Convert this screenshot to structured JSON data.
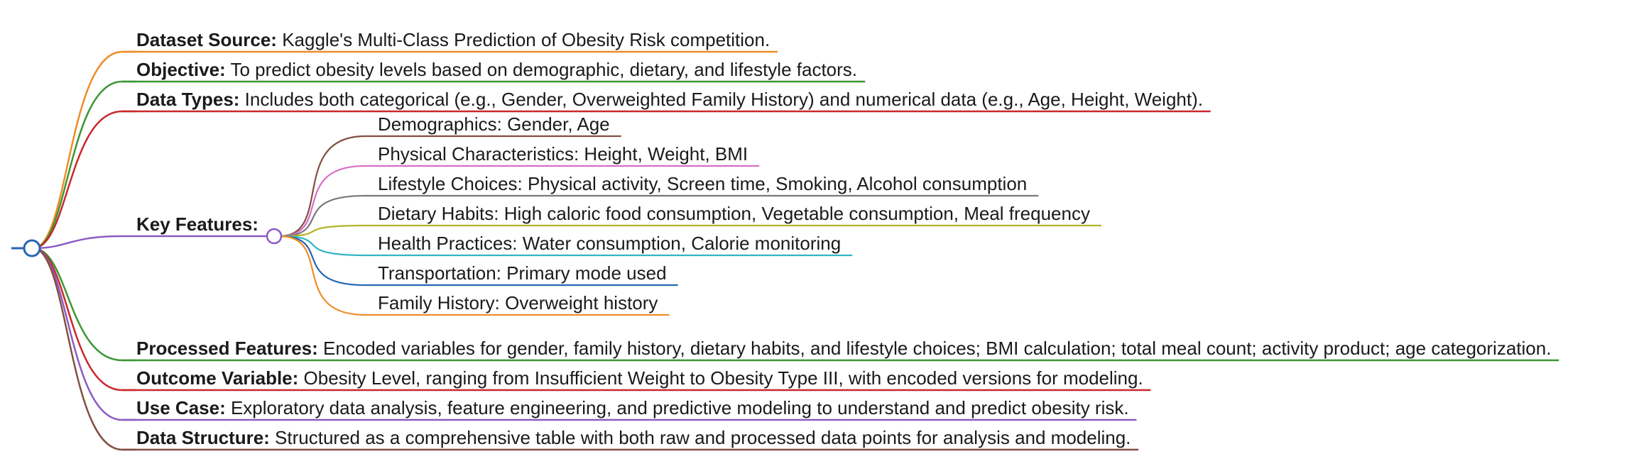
{
  "mindmap": {
    "branches": [
      {
        "label": "Dataset Source:",
        "text": "Kaggle's Multi-Class Prediction of Obesity Risk competition.",
        "color": "#f08c28"
      },
      {
        "label": "Objective:",
        "text": "To predict obesity levels based on demographic, dietary, and lifestyle factors.",
        "color": "#3c9632"
      },
      {
        "label": "Data Types:",
        "text": "Includes both categorical (e.g., Gender, Overweighted Family History) and numerical data (e.g., Age, Height, Weight).",
        "color": "#c8282d"
      },
      {
        "label": "Key Features:",
        "text": "",
        "color": "#8c5ac3",
        "children": [
          {
            "text": "Demographics: Gender, Age",
            "color": "#825041"
          },
          {
            "text": "Physical Characteristics: Height, Weight, BMI",
            "color": "#d76ec8"
          },
          {
            "text": "Lifestyle Choices: Physical activity, Screen time, Smoking, Alcohol consumption",
            "color": "#787878"
          },
          {
            "text": "Dietary Habits: High caloric food consumption, Vegetable consumption, Meal frequency",
            "color": "#b4b428"
          },
          {
            "text": "Health Practices: Water consumption, Calorie monitoring",
            "color": "#32b4c3"
          },
          {
            "text": "Transportation: Primary mode used",
            "color": "#2864b4"
          },
          {
            "text": "Family History: Overweight history",
            "color": "#f08c28"
          }
        ]
      },
      {
        "label": "Processed Features:",
        "text": "Encoded variables for gender, family history, dietary habits, and lifestyle choices; BMI calculation; total meal count; activity product; age categorization.",
        "color": "#3c9632"
      },
      {
        "label": "Outcome Variable:",
        "text": "Obesity Level, ranging from Insufficient Weight to Obesity Type III, with encoded versions for modeling.",
        "color": "#c8282d"
      },
      {
        "label": "Use Case:",
        "text": "Exploratory data analysis, feature engineering, and predictive modeling to understand and predict obesity risk.",
        "color": "#8c5ac3"
      },
      {
        "label": "Data Structure:",
        "text": "Structured as a comprehensive table with both raw and processed data points for analysis and modeling.",
        "color": "#825041"
      }
    ],
    "root_color": "#2864b4"
  }
}
